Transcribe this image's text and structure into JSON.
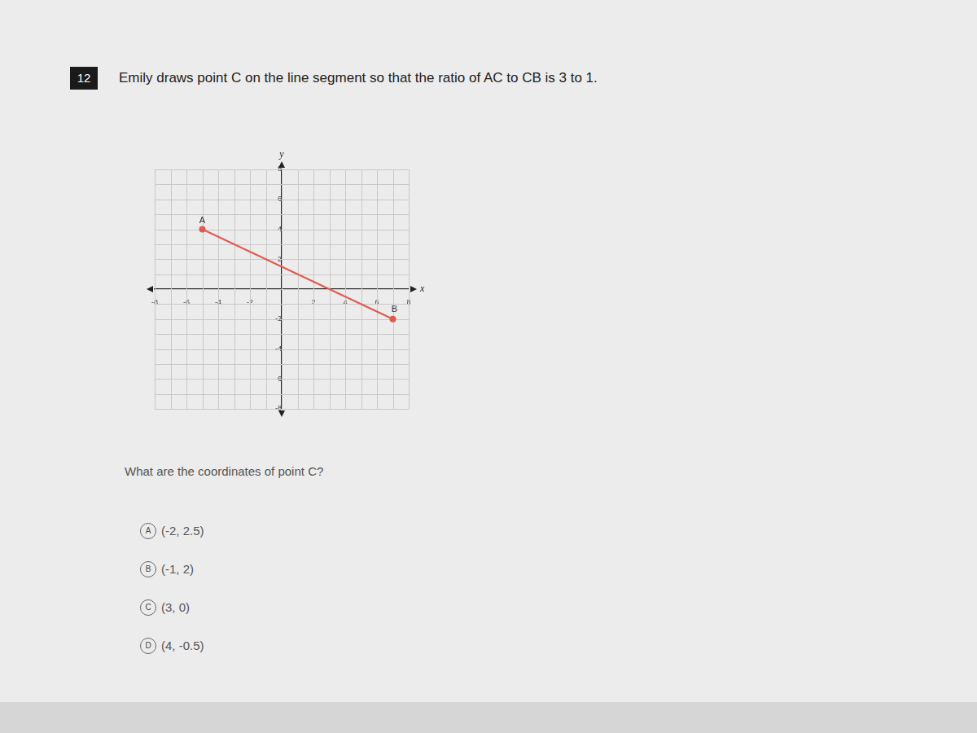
{
  "question": {
    "number": "12",
    "text": "Emily draws point C on the line segment so that the ratio of AC to CB is 3 to 1."
  },
  "chart_data": {
    "type": "line",
    "x_label": "x",
    "y_label": "y",
    "points": [
      {
        "label": "A",
        "x": -5,
        "y": 4
      },
      {
        "label": "B",
        "x": 7,
        "y": -2
      }
    ],
    "color": "#e05a4e",
    "marker": "circle",
    "xlim": [
      -8,
      8
    ],
    "ylim": [
      -8,
      8
    ],
    "xticks": [
      -8,
      -6,
      -4,
      -2,
      2,
      4,
      6,
      8
    ],
    "yticks": [
      -8,
      -6,
      -4,
      -2,
      2,
      4,
      6,
      8
    ],
    "grid": true
  },
  "prompt": "What are the coordinates of point C?",
  "options": [
    {
      "letter": "A",
      "text": "(-2, 2.5)"
    },
    {
      "letter": "B",
      "text": "(-1, 2)"
    },
    {
      "letter": "C",
      "text": "(3, 0)"
    },
    {
      "letter": "D",
      "text": "(4, -0.5)"
    }
  ]
}
